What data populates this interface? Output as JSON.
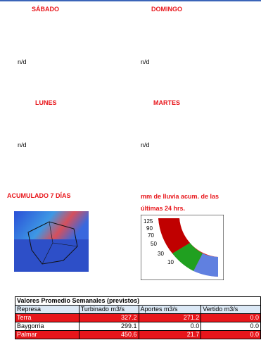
{
  "days": {
    "sabado": {
      "label": "SÁBADO",
      "value": "n/d"
    },
    "domingo": {
      "label": "DOMINGO",
      "value": "n/d"
    },
    "lunes": {
      "label": "LUNES",
      "value": "n/d"
    },
    "martes": {
      "label": "MARTES",
      "value": "n/d"
    }
  },
  "rain": {
    "accum_title": "ACUMULADO 7 DÍAS",
    "daily_title_1": "mm de lluvia acum. de las",
    "daily_title_2": "últimas 24 hrs."
  },
  "table": {
    "title": "Valores Promedio Semanales (previstos)",
    "header": [
      "Represa",
      "Turbinado m3/s",
      "Aportes m3/s",
      "Vertido m3/s"
    ],
    "rows": [
      [
        "Terra",
        "327.2",
        "271.2",
        "0.0"
      ],
      [
        "Baygorria",
        "299.1",
        "0.0",
        "0.0"
      ],
      [
        "Palmar",
        "450.6",
        "21.7",
        "0.0"
      ]
    ]
  }
}
